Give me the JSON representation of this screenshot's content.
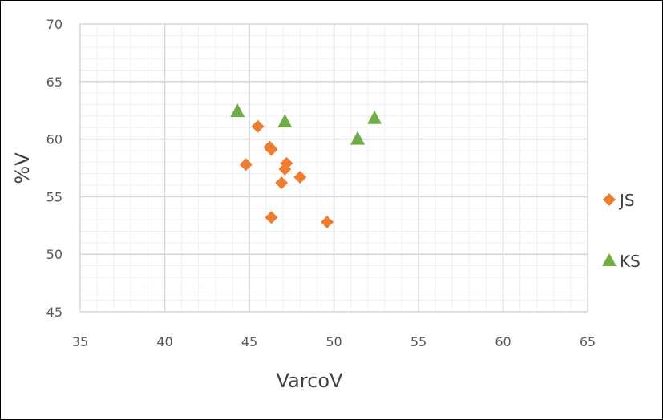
{
  "chart_data": {
    "type": "scatter",
    "title": "",
    "xlabel": "VarcoV",
    "ylabel": "%V",
    "xlim": [
      35,
      65
    ],
    "ylim": [
      45,
      70
    ],
    "x_major_step": 5,
    "x_minor_step": 1,
    "y_major_step": 5,
    "y_minor_step": 1,
    "grid": true,
    "legend_position": "right",
    "x_ticks": [
      "35",
      "40",
      "45",
      "50",
      "55",
      "60",
      "65"
    ],
    "y_ticks": [
      "45",
      "50",
      "55",
      "60",
      "65",
      "70"
    ],
    "series": [
      {
        "name": "JS",
        "marker": "diamond",
        "color": "#ED7D31",
        "points": [
          {
            "x": 44.8,
            "y": 57.8
          },
          {
            "x": 45.5,
            "y": 61.1
          },
          {
            "x": 46.2,
            "y": 59.3
          },
          {
            "x": 46.3,
            "y": 59.1
          },
          {
            "x": 46.3,
            "y": 53.2
          },
          {
            "x": 46.9,
            "y": 56.2
          },
          {
            "x": 47.1,
            "y": 57.4
          },
          {
            "x": 47.2,
            "y": 57.9
          },
          {
            "x": 48.0,
            "y": 56.7
          },
          {
            "x": 49.6,
            "y": 52.8
          }
        ]
      },
      {
        "name": "KS",
        "marker": "triangle",
        "color": "#70AD47",
        "points": [
          {
            "x": 44.3,
            "y": 62.4
          },
          {
            "x": 47.1,
            "y": 61.5
          },
          {
            "x": 51.4,
            "y": 60.0
          },
          {
            "x": 52.4,
            "y": 61.8
          }
        ]
      }
    ]
  }
}
